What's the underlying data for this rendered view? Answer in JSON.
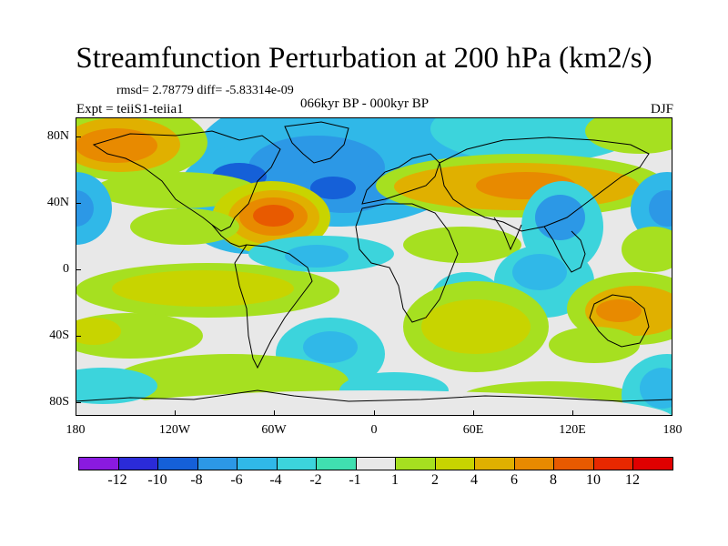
{
  "title": "Streamfunction Perturbation at 200 hPa (km2/s)",
  "stats": "rmsd= 2.78779 diff= -5.83314e-09",
  "experiment": "Expt = teiiS1-teiia1",
  "period": "066kyr BP - 000kyr BP",
  "season": "DJF",
  "axes": {
    "y_ticks": [
      "80N",
      "40N",
      "0",
      "40S",
      "80S"
    ],
    "x_ticks": [
      "180",
      "120W",
      "60W",
      "0",
      "60E",
      "120E",
      "180"
    ]
  },
  "colorbar": {
    "labels": [
      "-12",
      "-10",
      "-8",
      "-6",
      "-4",
      "-2",
      "-1",
      "1",
      "2",
      "4",
      "6",
      "8",
      "10",
      "12"
    ],
    "colors": [
      "#8a1ae0",
      "#2b2bd8",
      "#1560d8",
      "#2c98e6",
      "#30b8e8",
      "#3cd4dc",
      "#40e0b0",
      "#e8e8e8",
      "#a6e020",
      "#c8d400",
      "#e0b000",
      "#e88a00",
      "#e85a00",
      "#e82800",
      "#e00000"
    ]
  },
  "field_colors": {
    "background": "#e8e8e8",
    "light_green": "#a6e020",
    "yellow_green": "#c8d400",
    "orange": "#e0b000",
    "dark_orange": "#e88a00",
    "red_orange": "#e85a00",
    "cyan": "#3cd4dc",
    "sky": "#30b8e8",
    "blue": "#2c98e6",
    "deep_blue": "#1560d8"
  }
}
